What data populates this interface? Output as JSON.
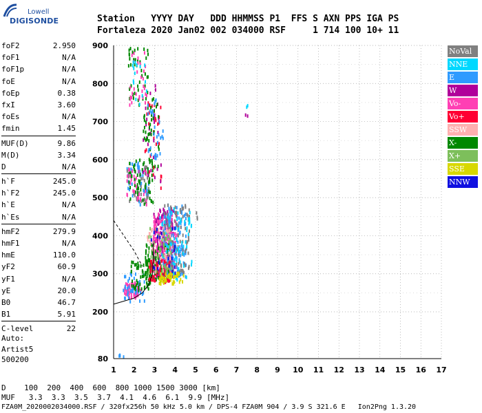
{
  "logo": {
    "brand_top": "Lowell",
    "brand_bottom": "DIGISONDE"
  },
  "header": {
    "line1": "Station   YYYY DAY   DDD HHMMSS P1  FFS S AXN PPS IGA PS",
    "line2": "Fortaleza 2020 Jan02 002 034000 RSF     1 714 100 10+ 11"
  },
  "params": {
    "group1": [
      {
        "label": "foF2",
        "value": "2.950"
      },
      {
        "label": "foF1",
        "value": "N/A"
      },
      {
        "label": "foF1p",
        "value": "N/A"
      },
      {
        "label": "foE",
        "value": "N/A"
      },
      {
        "label": "foEp",
        "value": "0.38"
      },
      {
        "label": "fxI",
        "value": "3.60"
      },
      {
        "label": "foEs",
        "value": "N/A"
      },
      {
        "label": "fmin",
        "value": "1.45"
      }
    ],
    "group2": [
      {
        "label": "MUF(D)",
        "value": "9.86"
      },
      {
        "label": "M(D)",
        "value": "3.34"
      },
      {
        "label": "D",
        "value": "N/A"
      }
    ],
    "group3": [
      {
        "label": "h`F",
        "value": "245.0"
      },
      {
        "label": "h`F2",
        "value": "245.0"
      },
      {
        "label": "h`E",
        "value": "N/A"
      },
      {
        "label": "h`Es",
        "value": "N/A"
      }
    ],
    "group4": [
      {
        "label": "hmF2",
        "value": "279.9"
      },
      {
        "label": "hmF1",
        "value": "N/A"
      },
      {
        "label": "hmE",
        "value": "110.0"
      },
      {
        "label": "yF2",
        "value": "60.9"
      },
      {
        "label": "yF1",
        "value": "N/A"
      },
      {
        "label": "yE",
        "value": "20.0"
      },
      {
        "label": "B0",
        "value": "46.7"
      },
      {
        "label": "B1",
        "value": "5.91"
      }
    ],
    "group5": [
      {
        "label": "C-level",
        "value": "22"
      }
    ]
  },
  "auto": {
    "line1": "Auto:",
    "line2": "Artist5",
    "line3": "500200"
  },
  "legend": [
    {
      "label": "NoVal",
      "color": "#808080"
    },
    {
      "label": "NNE",
      "color": "#00d8ff"
    },
    {
      "label": "E",
      "color": "#2e9bff"
    },
    {
      "label": "W",
      "color": "#b0009a"
    },
    {
      "label": "Vo-",
      "color": "#ff3fb4"
    },
    {
      "label": "Vo+",
      "color": "#ff0033"
    },
    {
      "label": "SSW",
      "color": "#ffb0b0"
    },
    {
      "label": "X-",
      "color": "#008800"
    },
    {
      "label": "X+",
      "color": "#7dbf5b"
    },
    {
      "label": "SSE",
      "color": "#d8d800"
    },
    {
      "label": "NNW",
      "color": "#1010e0"
    }
  ],
  "footer": {
    "d_row": "D    100  200  400  600  800 1000 1500 3000 [km]",
    "muf_row": "MUF   3.3  3.3  3.5  3.7  4.1  4.6  6.1  9.9 [MHz]",
    "info_row": "FZA0M_2020002034000.RSF / 320fx256h 50 kHz 5.0 km / DPS-4 FZA0M 904 / 3.9 S 321.6 E   Ion2Png 1.3.20"
  },
  "chart_data": {
    "type": "scatter",
    "xlim": [
      1,
      17
    ],
    "ylim": [
      80,
      900
    ],
    "x_ticks": [
      "1",
      "2",
      "3",
      "4",
      "5",
      "6",
      "7",
      "8",
      "9",
      "10",
      "11",
      "12",
      "13",
      "14",
      "15",
      "16",
      "17"
    ],
    "y_ticks": [
      "80",
      "200",
      "300",
      "400",
      "500",
      "600",
      "700",
      "800",
      "900"
    ],
    "grid": true,
    "legend_position": "right",
    "clusters": [
      {
        "color": "#ff3fb4",
        "x": [
          1.5,
          2.3
        ],
        "y": [
          235,
          275
        ],
        "n": 70
      },
      {
        "color": "#2e9bff",
        "x": [
          1.4,
          2.5
        ],
        "y": [
          225,
          300
        ],
        "n": 40
      },
      {
        "color": "#008800",
        "x": [
          1.8,
          3.0
        ],
        "y": [
          255,
          330
        ],
        "n": 70
      },
      {
        "color": "#b0009a",
        "x": [
          2.9,
          3.9
        ],
        "y": [
          290,
          470
        ],
        "n": 200
      },
      {
        "color": "#ff3fb4",
        "x": [
          2.9,
          4.1
        ],
        "y": [
          300,
          460
        ],
        "n": 150
      },
      {
        "color": "#008800",
        "x": [
          2.5,
          3.7
        ],
        "y": [
          280,
          380
        ],
        "n": 110
      },
      {
        "color": "#2e9bff",
        "x": [
          3.3,
          4.5
        ],
        "y": [
          290,
          480
        ],
        "n": 140
      },
      {
        "color": "#808080",
        "x": [
          3.4,
          4.7
        ],
        "y": [
          300,
          480
        ],
        "n": 110
      },
      {
        "color": "#00d8ff",
        "x": [
          3.2,
          4.8
        ],
        "y": [
          280,
          470
        ],
        "n": 70
      },
      {
        "color": "#ff0033",
        "x": [
          2.7,
          3.7
        ],
        "y": [
          275,
          340
        ],
        "n": 70
      },
      {
        "color": "#d8d800",
        "x": [
          3.2,
          4.4
        ],
        "y": [
          272,
          300
        ],
        "n": 50
      },
      {
        "color": "#ffb0b0",
        "x": [
          2.6,
          3.8
        ],
        "y": [
          300,
          420
        ],
        "n": 40
      },
      {
        "color": "#7dbf5b",
        "x": [
          2.6,
          3.8
        ],
        "y": [
          300,
          420
        ],
        "n": 40
      },
      {
        "color": "#1010e0",
        "x": [
          2.8,
          4.0
        ],
        "y": [
          300,
          420
        ],
        "n": 20
      },
      {
        "color": "#2e9bff",
        "x": [
          1.6,
          2.7
        ],
        "y": [
          480,
          590
        ],
        "n": 50
      },
      {
        "color": "#808080",
        "x": [
          1.6,
          2.7
        ],
        "y": [
          480,
          590
        ],
        "n": 40
      },
      {
        "color": "#008800",
        "x": [
          1.7,
          2.9
        ],
        "y": [
          480,
          600
        ],
        "n": 60
      },
      {
        "color": "#ff3fb4",
        "x": [
          1.6,
          2.6
        ],
        "y": [
          480,
          580
        ],
        "n": 30
      },
      {
        "color": "#ff0033",
        "x": [
          2.5,
          3.3
        ],
        "y": [
          520,
          750
        ],
        "n": 30
      },
      {
        "color": "#b0009a",
        "x": [
          2.4,
          3.3
        ],
        "y": [
          540,
          800
        ],
        "n": 30
      },
      {
        "color": "#008800",
        "x": [
          2.4,
          3.2
        ],
        "y": [
          580,
          760
        ],
        "n": 40
      },
      {
        "color": "#2e9bff",
        "x": [
          2.5,
          3.4
        ],
        "y": [
          600,
          760
        ],
        "n": 30
      },
      {
        "color": "#008800",
        "x": [
          1.7,
          2.7
        ],
        "y": [
          740,
          900
        ],
        "n": 40
      },
      {
        "color": "#ff3fb4",
        "x": [
          1.7,
          2.6
        ],
        "y": [
          740,
          880
        ],
        "n": 30
      },
      {
        "color": "#00d8ff",
        "x": [
          1.8,
          2.6
        ],
        "y": [
          740,
          860
        ],
        "n": 15
      },
      {
        "color": "#b0009a",
        "x": [
          7.4,
          7.55
        ],
        "y": [
          710,
          720
        ],
        "n": 2
      },
      {
        "color": "#00d8ff",
        "x": [
          7.45,
          7.55
        ],
        "y": [
          735,
          742
        ],
        "n": 2
      },
      {
        "color": "#2e9bff",
        "x": [
          1.2,
          1.5
        ],
        "y": [
          80,
          90
        ],
        "n": 4
      },
      {
        "color": "#808080",
        "x": [
          5.0,
          5.1
        ],
        "y": [
          440,
          460
        ],
        "n": 3
      }
    ],
    "profile_curve": {
      "x": [
        1.0,
        1.5,
        2.0,
        2.4,
        2.7,
        2.9,
        2.95
      ],
      "y": [
        220,
        228,
        236,
        250,
        270,
        300,
        380
      ]
    },
    "profile_dashed": {
      "x": [
        1.0,
        1.5,
        2.0,
        2.4
      ],
      "y": [
        440,
        400,
        360,
        320
      ]
    }
  }
}
